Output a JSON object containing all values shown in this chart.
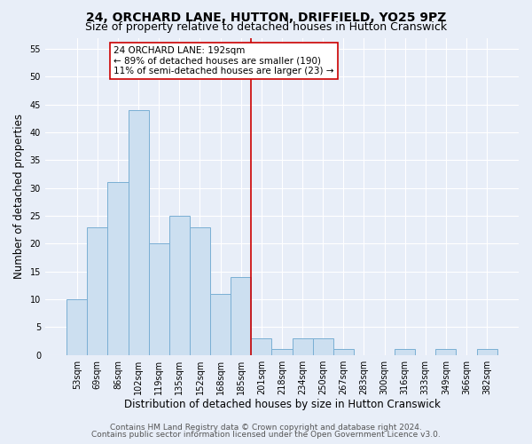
{
  "title": "24, ORCHARD LANE, HUTTON, DRIFFIELD, YO25 9PZ",
  "subtitle": "Size of property relative to detached houses in Hutton Cranswick",
  "xlabel": "Distribution of detached houses by size in Hutton Cranswick",
  "ylabel": "Number of detached properties",
  "bin_labels": [
    "53sqm",
    "69sqm",
    "86sqm",
    "102sqm",
    "119sqm",
    "135sqm",
    "152sqm",
    "168sqm",
    "185sqm",
    "201sqm",
    "218sqm",
    "234sqm",
    "250sqm",
    "267sqm",
    "283sqm",
    "300sqm",
    "316sqm",
    "333sqm",
    "349sqm",
    "366sqm",
    "382sqm"
  ],
  "bar_heights": [
    10,
    23,
    31,
    44,
    20,
    25,
    23,
    11,
    14,
    3,
    1,
    3,
    3,
    1,
    0,
    0,
    1,
    0,
    1,
    0,
    1
  ],
  "bar_color": "#ccdff0",
  "bar_edge_color": "#7aafd4",
  "vline_x_idx": 8.5,
  "vline_color": "#cc0000",
  "annotation_line1": "24 ORCHARD LANE: 192sqm",
  "annotation_line2": "← 89% of detached houses are smaller (190)",
  "annotation_line3": "11% of semi-detached houses are larger (23) →",
  "annotation_box_color": "#ffffff",
  "annotation_box_edge": "#cc0000",
  "ylim": [
    0,
    57
  ],
  "yticks": [
    0,
    5,
    10,
    15,
    20,
    25,
    30,
    35,
    40,
    45,
    50,
    55
  ],
  "footer_line1": "Contains HM Land Registry data © Crown copyright and database right 2024.",
  "footer_line2": "Contains public sector information licensed under the Open Government Licence v3.0.",
  "background_color": "#e8eef8",
  "plot_bg_color": "#e8eef8",
  "grid_color": "#ffffff",
  "title_fontsize": 10,
  "subtitle_fontsize": 9,
  "label_fontsize": 8.5,
  "tick_fontsize": 7,
  "annotation_fontsize": 7.5,
  "footer_fontsize": 6.5
}
